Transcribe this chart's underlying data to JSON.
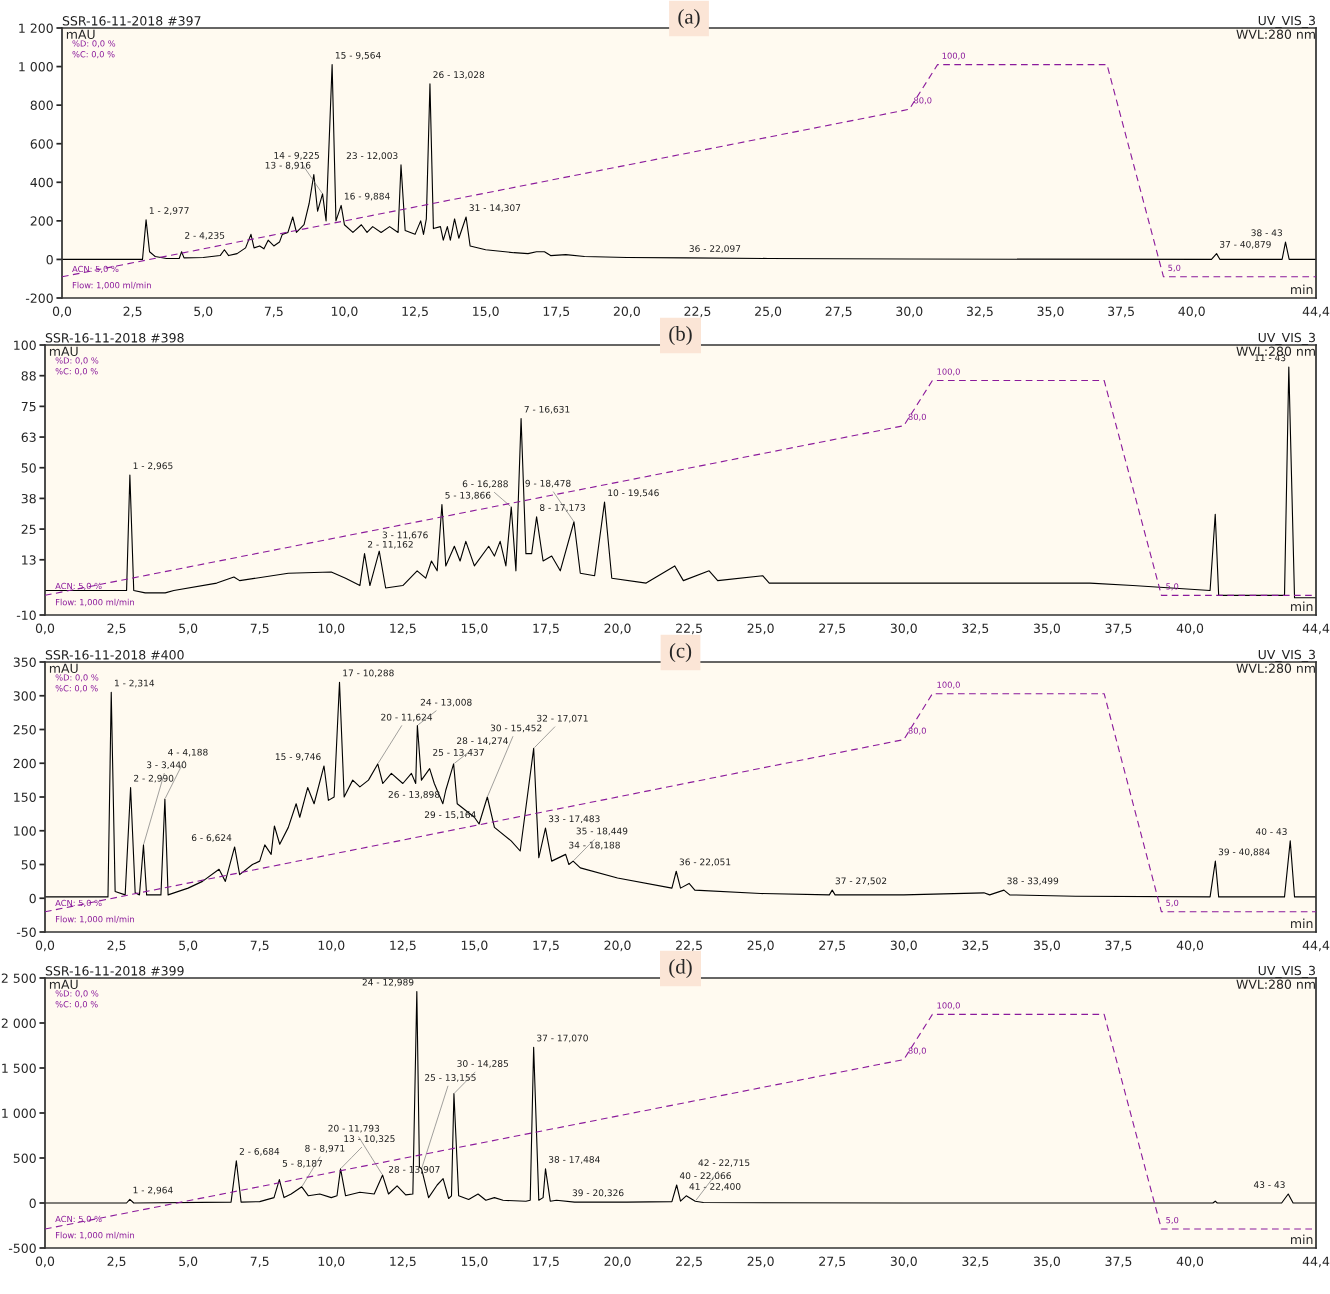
{
  "chart_data": [
    {
      "type": "line",
      "title": "(a)",
      "xlabel": "min",
      "ylabel": "mAU",
      "xlim": [
        0,
        44.4
      ],
      "ylim": [
        -200,
        1200
      ],
      "y2lim": [
        -4.5,
        116.4
      ],
      "xticks": [
        {
          "value": 0,
          "label": "0,0"
        },
        {
          "value": 2.5,
          "label": "2,5"
        },
        {
          "value": 5,
          "label": "5,0"
        },
        {
          "value": 7.5,
          "label": "7,5"
        },
        {
          "value": 10,
          "label": "10,0"
        },
        {
          "value": 12.5,
          "label": "12,5"
        },
        {
          "value": 15,
          "label": "15,0"
        },
        {
          "value": 17.5,
          "label": "17,5"
        },
        {
          "value": 20,
          "label": "20,0"
        },
        {
          "value": 22.5,
          "label": "22,5"
        },
        {
          "value": 25,
          "label": "25,0"
        },
        {
          "value": 27.5,
          "label": "27,5"
        },
        {
          "value": 30,
          "label": "30,0"
        },
        {
          "value": 32.5,
          "label": "32,5"
        },
        {
          "value": 35,
          "label": "35,0"
        },
        {
          "value": 37.5,
          "label": "37,5"
        },
        {
          "value": 40,
          "label": "40,0"
        },
        {
          "value": 44.4,
          "label": "44,4"
        }
      ],
      "yticks": [
        -200,
        0,
        200,
        400,
        600,
        800,
        {
          "value": 1000,
          "label": "1 000"
        },
        {
          "value": 1200,
          "label": "1 200"
        }
      ],
      "series": [
        {
          "type": "line",
          "color": "#000000",
          "line_style": "solid",
          "x": [
            0,
            2.85,
            2.977,
            3.1,
            3.3,
            3.7,
            4.15,
            4.235,
            4.32,
            5.0,
            5.6,
            5.75,
            5.9,
            6.2,
            6.5,
            6.69,
            6.8,
            7.0,
            7.15,
            7.3,
            7.5,
            7.7,
            7.8,
            8.0,
            8.17,
            8.3,
            8.57,
            8.75,
            8.916,
            9.05,
            9.225,
            9.35,
            9.564,
            9.7,
            9.884,
            10.0,
            10.3,
            10.6,
            10.8,
            11.0,
            11.3,
            11.6,
            11.9,
            12.003,
            12.15,
            12.5,
            12.7,
            12.8,
            12.9,
            13.028,
            13.15,
            13.4,
            13.5,
            13.644,
            13.75,
            13.9,
            14.05,
            14.307,
            14.45,
            15.0,
            16.0,
            16.5,
            16.8,
            17.083,
            17.3,
            17.839,
            18.5,
            20,
            22.097,
            25,
            30,
            40.7,
            40.879,
            41.0,
            43.2,
            43.32,
            43.45,
            44.4
          ],
          "values": [
            0,
            0,
            205,
            40,
            15,
            5,
            5,
            40,
            8,
            10,
            20,
            50,
            20,
            30,
            60,
            130,
            60,
            70,
            55,
            100,
            70,
            90,
            130,
            140,
            220,
            140,
            180,
            290,
            440,
            250,
            340,
            200,
            1010,
            200,
            280,
            180,
            140,
            180,
            140,
            170,
            140,
            170,
            140,
            490,
            150,
            130,
            200,
            130,
            210,
            910,
            160,
            170,
            100,
            170,
            100,
            210,
            110,
            220,
            70,
            50,
            35,
            30,
            40,
            40,
            20,
            25,
            15,
            10,
            8,
            5,
            2,
            0,
            30,
            0,
            0,
            90,
            0,
            0
          ]
        },
        {
          "type": "line",
          "axis": "y2",
          "color": "#8b1a9b",
          "line_style": "dashed",
          "x": [
            0,
            30,
            31,
            37,
            39,
            44.4
          ],
          "values": [
            5,
            80,
            100,
            100,
            5,
            5
          ],
          "value_labels": [
            null,
            "80,0",
            "100,0",
            null,
            "5,0",
            null
          ]
        }
      ],
      "annotations": [
        "SSR-16-11-2018 #397",
        "%D: 0,0 %",
        "%C: 0,0 %",
        "UV_VIS_3",
        "WVL:280 nm",
        "ACN: 5,0 %",
        "Flow: 1,000 ml/min",
        {
          "text": "1 - 2,977",
          "x": 2.977,
          "y": 205
        },
        {
          "text": "2 - 4,235",
          "x": 4.235,
          "y": 40
        },
        {
          "text": "13 - 8,916",
          "x": 8.916,
          "y": 440
        },
        {
          "text": "14 - 9,225",
          "x": 9.225,
          "y": 340
        },
        {
          "text": "15 - 9,564",
          "x": 9.564,
          "y": 1010
        },
        {
          "text": "16 - 9,884",
          "x": 9.884,
          "y": 280
        },
        {
          "text": "23 - 12,003",
          "x": 12.003,
          "y": 490
        },
        {
          "text": "26 - 13,028",
          "x": 13.028,
          "y": 910
        },
        {
          "text": "31 - 14,307",
          "x": 14.307,
          "y": 220
        },
        {
          "text": "36 - 22,097",
          "x": 22.097,
          "y": 8
        },
        {
          "text": "37 - 40,879",
          "x": 40.879,
          "y": 30
        },
        {
          "text": "38 - 43",
          "x": 43.32,
          "y": 90
        }
      ]
    },
    {
      "type": "line",
      "title": "(b)",
      "xlabel": "min",
      "ylabel": "mAU",
      "xlim": [
        0,
        44.4
      ],
      "ylim": [
        -10,
        100
      ],
      "y2lim": [
        -3.7,
        115.7
      ],
      "xticks": [
        {
          "value": 0,
          "label": "0,0"
        },
        {
          "value": 2.5,
          "label": "2,5"
        },
        {
          "value": 5,
          "label": "5,0"
        },
        {
          "value": 7.5,
          "label": "7,5"
        },
        {
          "value": 10,
          "label": "10,0"
        },
        {
          "value": 12.5,
          "label": "12,5"
        },
        {
          "value": 15,
          "label": "15,0"
        },
        {
          "value": 17.5,
          "label": "17,5"
        },
        {
          "value": 20,
          "label": "20,0"
        },
        {
          "value": 22.5,
          "label": "22,5"
        },
        {
          "value": 25,
          "label": "25,0"
        },
        {
          "value": 27.5,
          "label": "27,5"
        },
        {
          "value": 30,
          "label": "30,0"
        },
        {
          "value": 32.5,
          "label": "32,5"
        },
        {
          "value": 35,
          "label": "35,0"
        },
        {
          "value": 37.5,
          "label": "37,5"
        },
        {
          "value": 40,
          "label": "40,0"
        },
        {
          "value": 44.4,
          "label": "44,4"
        }
      ],
      "yticks": [
        -10,
        {
          "value": 12.5,
          "label": "13"
        },
        25,
        {
          "value": 37.5,
          "label": "38"
        },
        50,
        {
          "value": 62.5,
          "label": "63"
        },
        75,
        {
          "value": 87.5,
          "label": "88"
        },
        100
      ],
      "series": [
        {
          "type": "line",
          "color": "#000000",
          "line_style": "solid",
          "x": [
            0,
            2.85,
            2.965,
            3.1,
            3.5,
            4.2,
            4.5,
            6.0,
            6.6,
            6.8,
            8.5,
            10.0,
            10.5,
            11.0,
            11.162,
            11.35,
            11.676,
            11.9,
            12.5,
            13.0,
            13.3,
            13.5,
            13.7,
            13.866,
            14.0,
            14.3,
            14.5,
            14.7,
            15.0,
            15.5,
            15.7,
            15.9,
            16.1,
            16.288,
            16.45,
            16.631,
            16.8,
            17.0,
            17.173,
            17.4,
            17.7,
            18.0,
            18.478,
            18.7,
            19.2,
            19.546,
            19.8,
            21.0,
            22.0,
            22.3,
            23.2,
            23.5,
            25.07,
            25.3,
            30,
            36.5,
            38,
            40.7,
            40.88,
            41.0,
            43.3,
            43.45,
            43.65,
            44.4
          ],
          "values": [
            0,
            0,
            47,
            0,
            -1,
            -1,
            0,
            3,
            5.5,
            4,
            7,
            7.5,
            5,
            2,
            15,
            2,
            16,
            1,
            2,
            8,
            5,
            12,
            8,
            35,
            10,
            18,
            12,
            20,
            10,
            18,
            14,
            20,
            10,
            34,
            8,
            70,
            15,
            15,
            30,
            12,
            14,
            8,
            28,
            7,
            6,
            36,
            5,
            3,
            10,
            4,
            8,
            4,
            6,
            3,
            3,
            3,
            2,
            0,
            31,
            -2,
            -2,
            91,
            -3,
            -3
          ]
        },
        {
          "type": "line",
          "axis": "y2",
          "color": "#8b1a9b",
          "line_style": "dashed",
          "x": [
            0,
            30,
            31,
            37,
            39,
            44.4
          ],
          "values": [
            5,
            80,
            100,
            100,
            5,
            5
          ],
          "value_labels": [
            null,
            "80,0",
            "100,0",
            null,
            "5,0",
            null
          ]
        }
      ],
      "annotations": [
        "SSR-16-11-2018 #398",
        "%D: 0,0 %",
        "%C: 0,0 %",
        "UV_VIS_3",
        "WVL:280 nm",
        "ACN: 5,0 %",
        "Flow: 1,000 ml/min",
        {
          "text": "1 - 2,965",
          "x": 2.965,
          "y": 47
        },
        {
          "text": "2 - 11,162",
          "x": 11.162,
          "y": 15
        },
        {
          "text": "3 - 11,676",
          "x": 11.676,
          "y": 16
        },
        {
          "text": "5 - 13,866",
          "x": 13.866,
          "y": 35
        },
        {
          "text": "6 - 16,288",
          "x": 16.288,
          "y": 34
        },
        {
          "text": "7 - 16,631",
          "x": 16.631,
          "y": 70
        },
        {
          "text": "8 - 17,173",
          "x": 17.173,
          "y": 30
        },
        {
          "text": "9 - 18,478",
          "x": 18.478,
          "y": 28
        },
        {
          "text": "10 - 19,546",
          "x": 19.546,
          "y": 36
        },
        {
          "text": "11 - 43",
          "x": 43.45,
          "y": 91
        }
      ]
    },
    {
      "type": "line",
      "title": "(c)",
      "xlabel": "min",
      "ylabel": "mAU",
      "xlim": [
        0,
        44.4
      ],
      "ylim": [
        -50,
        350
      ],
      "y2lim": [
        -3.8,
        113.8
      ],
      "xticks": [
        {
          "value": 0,
          "label": "0,0"
        },
        {
          "value": 2.5,
          "label": "2,5"
        },
        {
          "value": 5,
          "label": "5,0"
        },
        {
          "value": 7.5,
          "label": "7,5"
        },
        {
          "value": 10,
          "label": "10,0"
        },
        {
          "value": 12.5,
          "label": "12,5"
        },
        {
          "value": 15,
          "label": "15,0"
        },
        {
          "value": 17.5,
          "label": "17,5"
        },
        {
          "value": 20,
          "label": "20,0"
        },
        {
          "value": 22.5,
          "label": "22,5"
        },
        {
          "value": 25,
          "label": "25,0"
        },
        {
          "value": 27.5,
          "label": "27,5"
        },
        {
          "value": 30,
          "label": "30,0"
        },
        {
          "value": 32.5,
          "label": "32,5"
        },
        {
          "value": 35,
          "label": "35,0"
        },
        {
          "value": 37.5,
          "label": "37,5"
        },
        {
          "value": 40,
          "label": "40,0"
        },
        {
          "value": 44.4,
          "label": "44,4"
        }
      ],
      "yticks": [
        -50,
        0,
        50,
        100,
        150,
        200,
        250,
        300,
        350
      ],
      "series": [
        {
          "type": "line",
          "color": "#000000",
          "line_style": "solid",
          "x": [
            0,
            2.2,
            2.314,
            2.45,
            2.8,
            2.99,
            3.15,
            3.3,
            3.44,
            3.55,
            4.05,
            4.188,
            4.3,
            5.0,
            5.5,
            6.08,
            6.3,
            6.624,
            6.8,
            7.246,
            7.5,
            7.678,
            7.9,
            8.014,
            8.2,
            8.5,
            8.773,
            8.9,
            9.176,
            9.4,
            9.746,
            9.9,
            10.1,
            10.288,
            10.45,
            10.75,
            11.0,
            11.3,
            11.624,
            11.8,
            12.1,
            12.5,
            12.8,
            12.95,
            13.008,
            13.15,
            13.437,
            13.6,
            13.898,
            14.0,
            14.274,
            14.4,
            15.0,
            15.164,
            15.452,
            15.7,
            16.284,
            16.6,
            17.071,
            17.25,
            17.483,
            17.7,
            18.188,
            18.3,
            18.449,
            18.7,
            20.0,
            21.9,
            22.051,
            22.2,
            22.5,
            22.7,
            25,
            27.4,
            27.5,
            27.6,
            30,
            32.8,
            33.0,
            33.499,
            33.7,
            36,
            40.7,
            40.884,
            41.0,
            43.3,
            43.5,
            43.65,
            44.4
          ],
          "values": [
            2,
            2,
            305,
            10,
            5,
            164,
            8,
            5,
            79,
            5,
            5,
            147,
            5,
            15,
            25,
            43,
            25,
            76,
            35,
            50,
            55,
            79,
            65,
            107,
            80,
            105,
            140,
            120,
            164,
            140,
            196,
            145,
            150,
            320,
            150,
            175,
            165,
            175,
            199,
            170,
            185,
            170,
            185,
            170,
            256,
            175,
            192,
            170,
            140,
            160,
            199,
            140,
            120,
            110,
            150,
            105,
            85,
            70,
            222,
            60,
            104,
            55,
            65,
            50,
            55,
            45,
            30,
            15,
            40,
            15,
            22,
            12,
            7,
            5,
            12,
            5,
            5,
            8,
            5,
            12,
            5,
            3,
            2,
            55,
            2,
            2,
            85,
            2,
            2
          ]
        },
        {
          "type": "line",
          "axis": "y2",
          "color": "#8b1a9b",
          "line_style": "dashed",
          "x": [
            0,
            30,
            31,
            37,
            39,
            44.4
          ],
          "values": [
            5,
            80,
            100,
            100,
            5,
            5
          ],
          "value_labels": [
            null,
            "80,0",
            "100,0",
            null,
            "5,0",
            null
          ]
        }
      ],
      "annotations": [
        "SSR-16-11-2018 #400",
        "%D: 0,0 %",
        "%C: 0,0 %",
        "UV_VIS_3",
        "WVL:280 nm",
        "ACN: 5,0 %",
        "Flow: 1,000 ml/min",
        {
          "text": "1 - 2,314",
          "x": 2.314,
          "y": 305
        },
        {
          "text": "2 - 2,990",
          "x": 2.99,
          "y": 164
        },
        {
          "text": "3 - 3,440",
          "x": 3.44,
          "y": 79
        },
        {
          "text": "4 - 4,188",
          "x": 4.188,
          "y": 147
        },
        {
          "text": "6 - 6,624",
          "x": 6.624,
          "y": 76
        },
        {
          "text": "15 - 9,746",
          "x": 9.746,
          "y": 196
        },
        {
          "text": "17 - 10,288",
          "x": 10.288,
          "y": 320
        },
        {
          "text": "20 - 11,624",
          "x": 11.624,
          "y": 199
        },
        {
          "text": "24 - 13,008",
          "x": 13.008,
          "y": 256
        },
        {
          "text": "25 - 13,437",
          "x": 13.437,
          "y": 192
        },
        {
          "text": "26 - 13,898",
          "x": 13.898,
          "y": 140
        },
        {
          "text": "28 - 14,274",
          "x": 14.274,
          "y": 199
        },
        {
          "text": "29 - 15,164",
          "x": 15.164,
          "y": 110
        },
        {
          "text": "30 - 15,452",
          "x": 15.452,
          "y": 150
        },
        {
          "text": "32 - 17,071",
          "x": 17.071,
          "y": 222
        },
        {
          "text": "33 - 17,483",
          "x": 17.483,
          "y": 104
        },
        {
          "text": "34 - 18,188",
          "x": 18.188,
          "y": 65
        },
        {
          "text": "35 - 18,449",
          "x": 18.449,
          "y": 55
        },
        {
          "text": "36 - 22,051",
          "x": 22.051,
          "y": 40
        },
        {
          "text": "37 - 27,502",
          "x": 27.5,
          "y": 12
        },
        {
          "text": "38 - 33,499",
          "x": 33.499,
          "y": 12
        },
        {
          "text": "39 - 40,884",
          "x": 40.884,
          "y": 55
        },
        {
          "text": "40 - 43",
          "x": 43.5,
          "y": 85
        }
      ]
    },
    {
      "type": "line",
      "title": "(d)",
      "xlabel": "min",
      "ylabel": "mAU",
      "xlim": [
        0,
        44.4
      ],
      "ylim": [
        -500,
        2500
      ],
      "y2lim": [
        -3.4,
        116.1
      ],
      "xticks": [
        {
          "value": 0,
          "label": "0,0"
        },
        {
          "value": 2.5,
          "label": "2,5"
        },
        {
          "value": 5,
          "label": "5,0"
        },
        {
          "value": 7.5,
          "label": "7,5"
        },
        {
          "value": 10,
          "label": "10,0"
        },
        {
          "value": 12.5,
          "label": "12,5"
        },
        {
          "value": 15,
          "label": "15,0"
        },
        {
          "value": 17.5,
          "label": "17,5"
        },
        {
          "value": 20,
          "label": "20,0"
        },
        {
          "value": 22.5,
          "label": "22,5"
        },
        {
          "value": 25,
          "label": "25,0"
        },
        {
          "value": 27.5,
          "label": "27,5"
        },
        {
          "value": 30,
          "label": "30,0"
        },
        {
          "value": 32.5,
          "label": "32,5"
        },
        {
          "value": 35,
          "label": "35,0"
        },
        {
          "value": 37.5,
          "label": "37,5"
        },
        {
          "value": 40,
          "label": "40,0"
        },
        {
          "value": 44.4,
          "label": "44,4"
        }
      ],
      "yticks": [
        -500,
        0,
        500,
        {
          "value": 1000,
          "label": "1 000"
        },
        {
          "value": 1500,
          "label": "1 500"
        },
        {
          "value": 2000,
          "label": "2 000"
        },
        {
          "value": 2500,
          "label": "2 500"
        }
      ],
      "series": [
        {
          "type": "line",
          "color": "#000000",
          "line_style": "solid",
          "x": [
            0,
            2.85,
            2.964,
            3.1,
            6.5,
            6.684,
            6.85,
            7.5,
            8.0,
            8.187,
            8.35,
            8.6,
            8.971,
            9.2,
            9.6,
            10.0,
            10.2,
            10.325,
            10.5,
            11.0,
            11.5,
            11.793,
            12.0,
            12.3,
            12.6,
            12.85,
            12.989,
            13.08,
            13.155,
            13.4,
            13.7,
            13.907,
            14.1,
            14.2,
            14.285,
            14.45,
            14.8,
            15.128,
            15.4,
            15.7,
            16.0,
            16.8,
            16.95,
            17.07,
            17.25,
            17.4,
            17.484,
            17.65,
            17.866,
            18.5,
            20.326,
            21.9,
            22.066,
            22.2,
            22.4,
            22.715,
            23,
            30,
            40.8,
            40.88,
            40.95,
            43.2,
            43.43,
            43.6,
            44.4
          ],
          "values": [
            0,
            0,
            40,
            0,
            10,
            470,
            10,
            15,
            60,
            260,
            60,
            100,
            180,
            80,
            100,
            60,
            80,
            380,
            80,
            120,
            100,
            310,
            100,
            190,
            90,
            100,
            2350,
            400,
            380,
            60,
            200,
            270,
            50,
            80,
            1215,
            80,
            40,
            100,
            30,
            60,
            30,
            20,
            30,
            1730,
            30,
            60,
            380,
            20,
            30,
            10,
            10,
            15,
            200,
            20,
            80,
            20,
            5,
            0,
            0,
            20,
            0,
            0,
            100,
            0,
            0
          ]
        },
        {
          "type": "line",
          "axis": "y2",
          "color": "#8b1a9b",
          "line_style": "dashed",
          "x": [
            0,
            30,
            31,
            37,
            39,
            44.4
          ],
          "values": [
            5,
            80,
            100,
            100,
            5,
            5
          ],
          "value_labels": [
            null,
            "80,0",
            "100,0",
            null,
            "5,0",
            null
          ]
        }
      ],
      "annotations": [
        "SSR-16-11-2018 #399",
        "%D: 0,0 %",
        "%C: 0,0 %",
        "UV_VIS_3",
        "WVL:280 nm",
        "ACN: 5,0 %",
        "Flow: 1,000 ml/min",
        {
          "text": "1 - 2,964",
          "x": 2.964,
          "y": 40
        },
        {
          "text": "2 - 6,684",
          "x": 6.684,
          "y": 470
        },
        {
          "text": "5 - 8,187",
          "x": 8.187,
          "y": 260
        },
        {
          "text": "8 - 8,971",
          "x": 8.971,
          "y": 180
        },
        {
          "text": "13 - 10,325",
          "x": 10.325,
          "y": 380
        },
        {
          "text": "20 - 11,793",
          "x": 11.793,
          "y": 310
        },
        {
          "text": "24 - 12,989",
          "x": 12.989,
          "y": 2350
        },
        {
          "text": "25 - 13,155",
          "x": 13.155,
          "y": 380
        },
        {
          "text": "28 - 13,907",
          "x": 13.907,
          "y": 270
        },
        {
          "text": "30 - 14,285",
          "x": 14.285,
          "y": 1215
        },
        {
          "text": "37 - 17,070",
          "x": 17.07,
          "y": 1730
        },
        {
          "text": "38 - 17,484",
          "x": 17.484,
          "y": 380
        },
        {
          "text": "39 - 20,326",
          "x": 20.326,
          "y": 10
        },
        {
          "text": "40 - 22,066",
          "x": 22.066,
          "y": 200
        },
        {
          "text": "41 - 22,400",
          "x": 22.4,
          "y": 80
        },
        {
          "text": "42 - 22,715",
          "x": 22.715,
          "y": 20
        },
        {
          "text": "43 - 43",
          "x": 43.43,
          "y": 100
        }
      ]
    }
  ]
}
